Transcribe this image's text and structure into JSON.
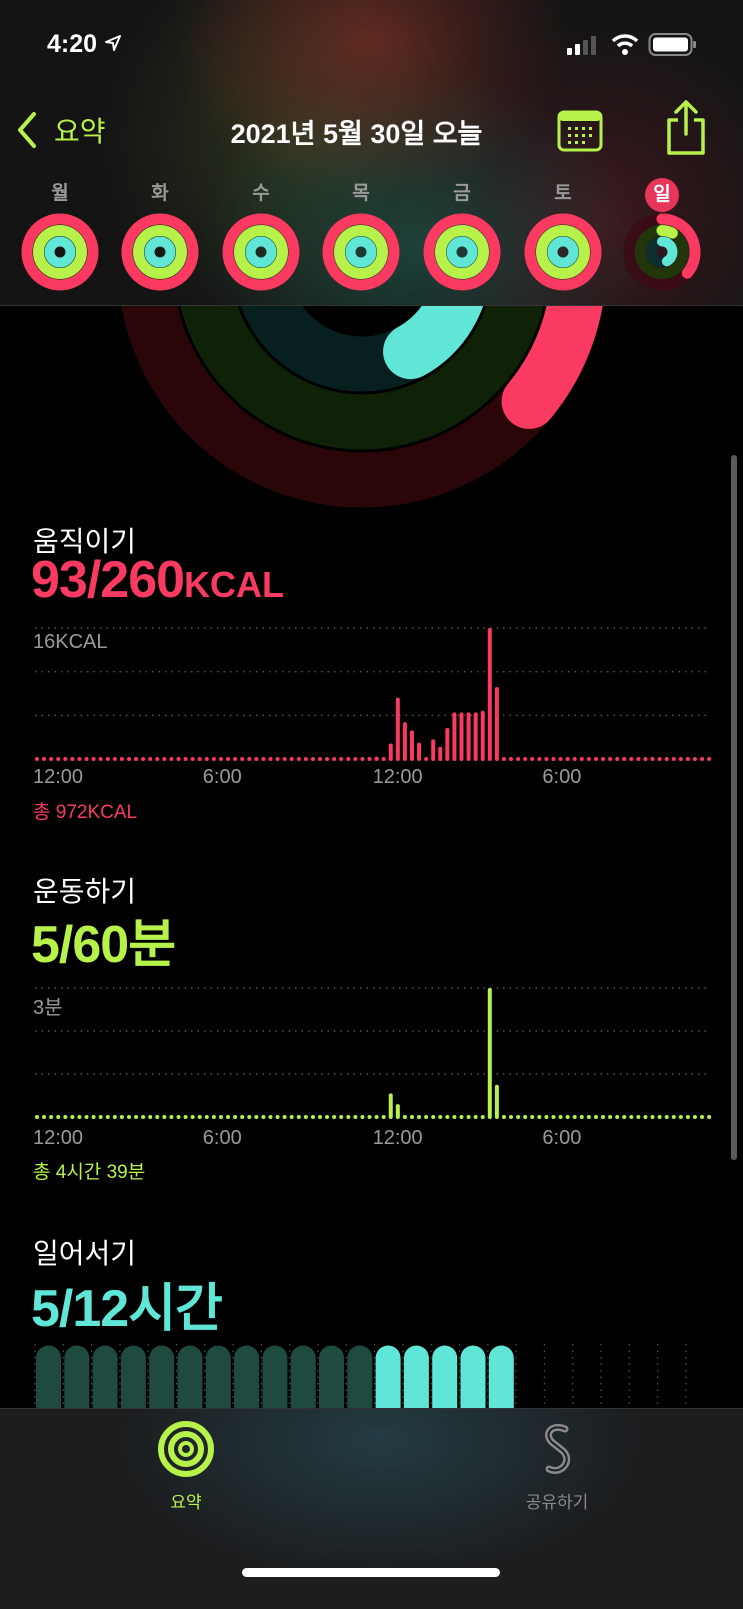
{
  "status_bar": {
    "time": "4:20",
    "location_icon": "location-arrow-icon",
    "signal_icon": "cellular-signal-icon",
    "wifi_icon": "wifi-icon",
    "battery_icon": "battery-icon"
  },
  "nav": {
    "back_label": "요약",
    "title": "2021년 5월 30일 오늘",
    "calendar_icon": "calendar-icon",
    "share_icon": "share-icon"
  },
  "week": [
    {
      "label": "월",
      "move": 1,
      "exercise": 1,
      "stand": 1
    },
    {
      "label": "화",
      "move": 1,
      "exercise": 1,
      "stand": 1
    },
    {
      "label": "수",
      "move": 1,
      "exercise": 1,
      "stand": 1
    },
    {
      "label": "목",
      "move": 1,
      "exercise": 1,
      "stand": 1
    },
    {
      "label": "금",
      "move": 1,
      "exercise": 1,
      "stand": 1
    },
    {
      "label": "토",
      "move": 1,
      "exercise": 1,
      "stand": 1
    },
    {
      "label": "일",
      "today": true,
      "move": 0.36,
      "exercise": 0.08,
      "stand": 0.42
    }
  ],
  "colors": {
    "move": "#fa3a60",
    "exercise": "#b6f24a",
    "stand": "#5fe6d6"
  },
  "move": {
    "title": "움직이기",
    "value": "93/260",
    "unit": "KCAL",
    "y_max_label": "16KCAL",
    "total": "총 972KCAL"
  },
  "exercise": {
    "title": "운동하기",
    "value": "5/60",
    "unit": "분",
    "y_max_label": "3분",
    "total": "총 4시간 39분"
  },
  "stand": {
    "title": "일어서기",
    "value": "5/12",
    "unit": "시간"
  },
  "x_ticks": [
    "12:00",
    "6:00",
    "12:00",
    "6:00"
  ],
  "chart_data": [
    {
      "type": "bar",
      "name": "move",
      "ylabel": "",
      "y_max": 16,
      "x_unit": "time of day (15-min)",
      "x": [
        "12:00",
        "12:30",
        "12:45",
        "13:00",
        "13:15",
        "13:30",
        "14:00",
        "14:15",
        "14:30",
        "14:45",
        "15:00",
        "15:15",
        "15:30",
        "15:45",
        "16:00",
        "16:15"
      ],
      "values": [
        0.3,
        1.9,
        7.5,
        4.5,
        3.5,
        2.0,
        2.4,
        1.5,
        3.8,
        5.7,
        5.7,
        5.7,
        5.7,
        5.9,
        16,
        8.8
      ]
    },
    {
      "type": "bar",
      "name": "exercise",
      "y_max": 3,
      "x": [
        "12:30",
        "12:45",
        "16:00",
        "16:15"
      ],
      "values": [
        0.55,
        0.3,
        3,
        0.75
      ]
    },
    {
      "type": "bar",
      "name": "stand",
      "hours_stood": [
        12,
        13,
        14,
        15,
        16
      ],
      "hours_elapsed": 17,
      "hours_total": 24
    }
  ],
  "tabs": [
    {
      "label": "요약",
      "icon": "activity-rings-icon",
      "active": true
    },
    {
      "label": "공유하기",
      "icon": "sharing-icon",
      "active": false
    }
  ]
}
